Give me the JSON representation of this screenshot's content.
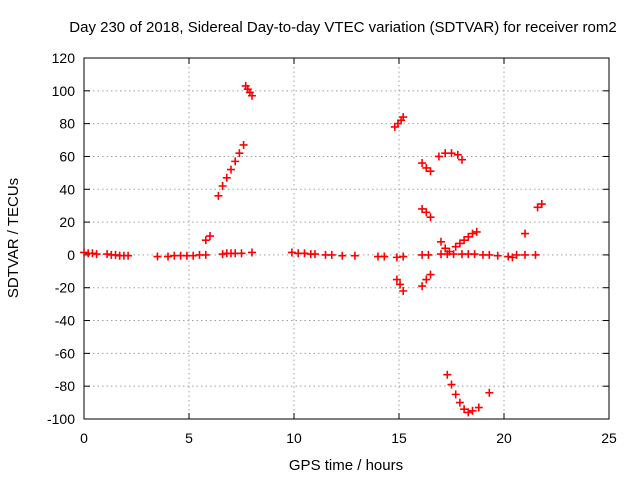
{
  "chart_data": {
    "type": "scatter",
    "title": "Day 230 of 2018, Sidereal Day-to-day VTEC variation (SDTVAR) for receiver rom2",
    "xlabel": "GPS time / hours",
    "ylabel": "SDTVAR / TECUs",
    "xlim": [
      0,
      25
    ],
    "ylim": [
      -100,
      120
    ],
    "xticks": [
      0,
      5,
      10,
      15,
      20,
      25
    ],
    "yticks": [
      -100,
      -80,
      -60,
      -40,
      -20,
      0,
      20,
      40,
      60,
      80,
      100,
      120
    ],
    "xtick_labels": [
      "0",
      "5",
      "10",
      "15",
      "20",
      "25"
    ],
    "ytick_labels": [
      "-100",
      "-80",
      "-60",
      "-40",
      "-20",
      "0",
      "20",
      "40",
      "60",
      "80",
      "100",
      "120"
    ],
    "grid": true,
    "marker": "plus",
    "color": "#ff0000",
    "series": [
      {
        "points": [
          [
            0.0,
            1.5
          ],
          [
            0.2,
            1.0
          ],
          [
            0.4,
            1.0
          ],
          [
            0.6,
            0.5
          ],
          [
            1.1,
            0.5
          ],
          [
            1.3,
            0.0
          ],
          [
            1.5,
            0.0
          ],
          [
            1.7,
            -0.5
          ],
          [
            1.9,
            -0.5
          ],
          [
            2.1,
            -0.5
          ],
          [
            3.5,
            -1.0
          ],
          [
            4.0,
            -1.0
          ],
          [
            4.3,
            -0.5
          ],
          [
            4.6,
            -0.5
          ],
          [
            4.9,
            -0.5
          ],
          [
            5.2,
            -0.5
          ],
          [
            5.5,
            0.0
          ],
          [
            5.8,
            0.0
          ],
          [
            6.6,
            0.5
          ],
          [
            6.8,
            1.0
          ],
          [
            7.0,
            1.0
          ],
          [
            7.2,
            1.0
          ],
          [
            7.5,
            1.0
          ],
          [
            8.0,
            1.5
          ],
          [
            9.9,
            1.5
          ],
          [
            10.2,
            1.0
          ],
          [
            10.5,
            1.0
          ],
          [
            10.8,
            0.5
          ],
          [
            11.0,
            0.5
          ],
          [
            11.5,
            0.0
          ],
          [
            11.8,
            0.0
          ],
          [
            12.3,
            -0.5
          ],
          [
            12.9,
            -0.5
          ],
          [
            14.0,
            -1.0
          ],
          [
            14.3,
            -1.0
          ],
          [
            14.9,
            -1.5
          ],
          [
            15.2,
            -1.0
          ],
          [
            16.1,
            0.0
          ],
          [
            16.4,
            0.0
          ],
          [
            17.0,
            0.5
          ],
          [
            17.3,
            0.5
          ],
          [
            17.6,
            0.5
          ],
          [
            18.0,
            0.5
          ],
          [
            18.3,
            0.5
          ],
          [
            18.6,
            0.5
          ],
          [
            19.0,
            0.0
          ],
          [
            19.3,
            0.0
          ],
          [
            19.7,
            -0.5
          ],
          [
            20.2,
            -1.0
          ],
          [
            20.4,
            -1.5
          ],
          [
            20.6,
            0.0
          ],
          [
            21.0,
            0.0
          ],
          [
            21.5,
            0.0
          ],
          [
            5.8,
            9.0
          ],
          [
            6.0,
            11.5
          ],
          [
            6.4,
            36.0
          ],
          [
            6.6,
            42.0
          ],
          [
            6.8,
            47.0
          ],
          [
            7.0,
            52.0
          ],
          [
            7.2,
            57.0
          ],
          [
            7.4,
            62.0
          ],
          [
            7.6,
            67.0
          ],
          [
            7.7,
            103.0
          ],
          [
            7.8,
            101.0
          ],
          [
            7.9,
            99.0
          ],
          [
            8.0,
            97.0
          ],
          [
            14.8,
            78.0
          ],
          [
            14.95,
            80.0
          ],
          [
            15.1,
            82.0
          ],
          [
            15.2,
            84.0
          ],
          [
            14.9,
            -15.0
          ],
          [
            15.05,
            -18.0
          ],
          [
            15.2,
            -22.0
          ],
          [
            16.1,
            56.0
          ],
          [
            16.3,
            53.0
          ],
          [
            16.5,
            51.0
          ],
          [
            16.9,
            60.0
          ],
          [
            17.2,
            62.0
          ],
          [
            17.5,
            62.0
          ],
          [
            17.8,
            61.0
          ],
          [
            18.0,
            58.0
          ],
          [
            16.1,
            28.0
          ],
          [
            16.3,
            26.0
          ],
          [
            16.5,
            23.0
          ],
          [
            16.1,
            -19.0
          ],
          [
            16.3,
            -15.0
          ],
          [
            16.5,
            -12.0
          ],
          [
            17.0,
            8.0
          ],
          [
            17.2,
            4.0
          ],
          [
            17.4,
            2.0
          ],
          [
            17.7,
            5.0
          ],
          [
            17.9,
            7.0
          ],
          [
            18.1,
            9.0
          ],
          [
            18.3,
            11.0
          ],
          [
            18.5,
            13.0
          ],
          [
            18.7,
            14.0
          ],
          [
            17.3,
            -73.0
          ],
          [
            17.5,
            -79.0
          ],
          [
            17.7,
            -85.0
          ],
          [
            17.9,
            -90.0
          ],
          [
            18.1,
            -94.0
          ],
          [
            18.3,
            -96.0
          ],
          [
            18.5,
            -95.0
          ],
          [
            18.8,
            -93.0
          ],
          [
            19.3,
            -84.0
          ],
          [
            21.0,
            13.0
          ],
          [
            21.6,
            29.0
          ],
          [
            21.8,
            31.0
          ]
        ]
      }
    ]
  }
}
